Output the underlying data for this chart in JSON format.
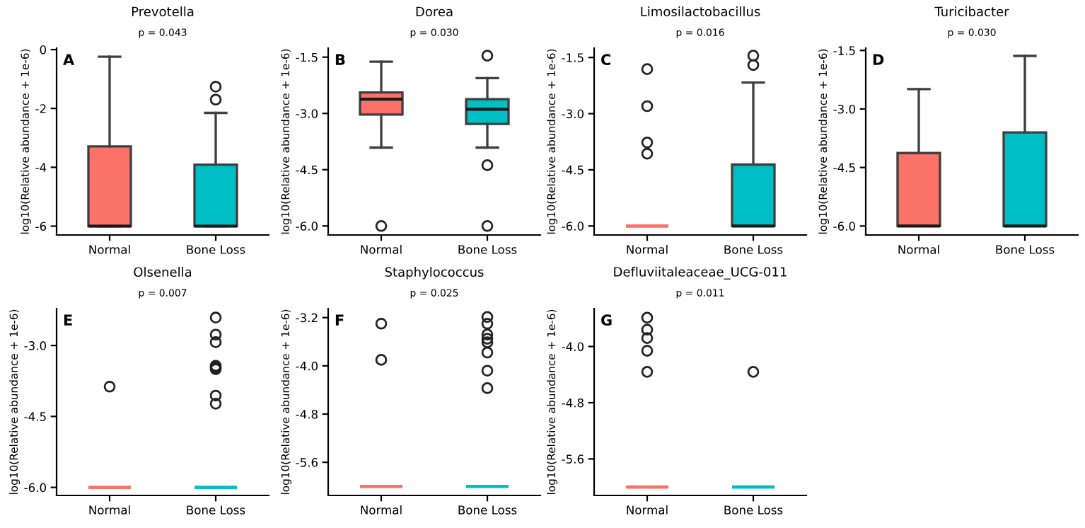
{
  "chart_data": [
    {
      "type": "box",
      "title": "Prevotella",
      "subtitle": "p = 0.043",
      "ylabel": "log10(Relative abundance + 1e-6)",
      "annotations": [
        "A"
      ],
      "categories": [
        "Normal",
        "Bone Loss"
      ],
      "colors": [
        "#fa7268",
        "#00bfc4"
      ],
      "ylim": [
        -6.3,
        0.05
      ],
      "yticks": [
        0,
        -2,
        -4,
        -6
      ],
      "boxes": [
        {
          "low": -6,
          "q1": -6,
          "median": -6,
          "q3": -3.29,
          "high": -0.24
        },
        {
          "low": -6,
          "q1": -6,
          "median": -6,
          "q3": -3.91,
          "high": -2.15,
          "outliers": [
            -1.26,
            -1.7
          ]
        }
      ]
    },
    {
      "type": "box",
      "title": "Dorea",
      "subtitle": "p = 0.030",
      "ylabel": "log10(Relative abundance + 1e-6)",
      "annotations": [
        "B"
      ],
      "categories": [
        "Normal",
        "Bone Loss"
      ],
      "colors": [
        "#fa7268",
        "#00bfc4"
      ],
      "ylim": [
        -6.24,
        -1.26
      ],
      "yticks": [
        -1.5,
        {
          "value": -3,
          "label": "-3.0"
        },
        -4.5,
        {
          "value": -6,
          "label": "-6.0"
        }
      ],
      "boxes": [
        {
          "low": -3.91,
          "q1": -3.03,
          "median": -2.62,
          "q3": -2.44,
          "high": -1.62,
          "outliers": [
            -6.0
          ]
        },
        {
          "low": -3.91,
          "q1": -3.28,
          "median": -2.89,
          "q3": -2.62,
          "high": -2.06,
          "outliers": [
            -1.46,
            -4.38,
            -6.0
          ]
        }
      ]
    },
    {
      "type": "box",
      "title": "Limosilactobacillus",
      "subtitle": "p = 0.016",
      "ylabel": "log10(Relative abundance + 1e-6)",
      "annotations": [
        "C"
      ],
      "categories": [
        "Normal",
        "Bone Loss"
      ],
      "colors": [
        "#fa7268",
        "#00bfc4"
      ],
      "ylim": [
        -6.24,
        -1.25
      ],
      "yticks": [
        -1.5,
        {
          "value": -3,
          "label": "-3.0"
        },
        -4.5,
        {
          "value": -6,
          "label": "-6.0"
        }
      ],
      "boxes": [
        {
          "low": -6,
          "q1": -6,
          "median": -6,
          "q3": -6,
          "high": -6,
          "outliers": [
            -1.81,
            -2.8,
            -3.77,
            -4.07
          ]
        },
        {
          "low": -6,
          "q1": -6,
          "median": -6,
          "q3": -4.36,
          "high": -2.17,
          "outliers": [
            -1.45,
            -1.7
          ]
        }
      ]
    },
    {
      "type": "box",
      "title": "Turicibacter",
      "subtitle": "p = 0.030",
      "ylabel": "log10(Relative abundance + 1e-6)",
      "annotations": [
        "D"
      ],
      "categories": [
        "Normal",
        "Bone Loss"
      ],
      "colors": [
        "#fa7268",
        "#00bfc4"
      ],
      "ylim": [
        -6.23,
        -1.44
      ],
      "yticks": [
        -1.5,
        {
          "value": -3,
          "label": "-3.0"
        },
        -4.5,
        {
          "value": -6,
          "label": "-6.0"
        }
      ],
      "boxes": [
        {
          "low": -6,
          "q1": -6,
          "median": -6,
          "q3": -4.13,
          "high": -2.49
        },
        {
          "low": -6,
          "q1": -6,
          "median": -6,
          "q3": -3.6,
          "high": -1.64
        }
      ]
    },
    {
      "type": "box",
      "title": "Olsenella",
      "subtitle": "p = 0.007",
      "ylabel": "log10(Relative abundance + 1e-6)",
      "annotations": [
        "E"
      ],
      "categories": [
        "Normal",
        "Bone Loss"
      ],
      "colors": [
        "#fa7268",
        "#00bfc4"
      ],
      "ylim": [
        -6.17,
        -2.22
      ],
      "yticks": [
        {
          "value": -3,
          "label": "-3.0"
        },
        -4.5,
        {
          "value": -6,
          "label": "-6.0"
        }
      ],
      "boxes": [
        {
          "low": -6,
          "q1": -6,
          "median": -6,
          "q3": -6,
          "high": -6,
          "outliers": [
            -3.87
          ]
        },
        {
          "low": -6,
          "q1": -6,
          "median": -6,
          "q3": -6,
          "high": -6,
          "outliers": [
            -2.41,
            -2.77,
            -2.93,
            -3.43,
            -3.46,
            -3.48,
            -3.5,
            -4.06,
            -4.23
          ]
        }
      ]
    },
    {
      "type": "box",
      "title": "Staphylococcus",
      "subtitle": "p = 0.025",
      "ylabel": "log10(Relative abundance + 1e-6)",
      "annotations": [
        "F"
      ],
      "categories": [
        "Normal",
        "Bone Loss"
      ],
      "colors": [
        "#fa7268",
        "#00bfc4"
      ],
      "ylim": [
        -6.15,
        -3.05
      ],
      "yticks": [
        -3.2,
        {
          "value": -4,
          "label": "-4.0"
        },
        -4.8,
        -5.6
      ],
      "boxes": [
        {
          "low": -6,
          "q1": -6,
          "median": -6,
          "q3": -6,
          "high": -6,
          "outliers": [
            -3.3,
            -3.9
          ]
        },
        {
          "low": -6,
          "q1": -6,
          "median": -6,
          "q3": -6,
          "high": -6,
          "outliers": [
            -3.19,
            -3.3,
            -3.48,
            -3.55,
            -3.61,
            -3.78,
            -4.08,
            -4.37
          ]
        }
      ]
    },
    {
      "type": "box",
      "title": "Defluviitaleaceae_UCG-011",
      "subtitle": "p = 0.011",
      "ylabel": "log10(Relative abundance + 1e-6)",
      "annotations": [
        "G"
      ],
      "categories": [
        "Normal",
        "Bone Loss"
      ],
      "colors": [
        "#fa7268",
        "#00bfc4"
      ],
      "ylim": [
        -6.12,
        -3.46
      ],
      "yticks": [
        {
          "value": -4,
          "label": "-4.0"
        },
        -4.8,
        -5.6
      ],
      "boxes": [
        {
          "low": -6,
          "q1": -6,
          "median": -6,
          "q3": -6,
          "high": -6,
          "outliers": [
            -3.59,
            -3.76,
            -3.88,
            -4.06,
            -4.36
          ]
        },
        {
          "low": -6,
          "q1": -6,
          "median": -6,
          "q3": -6,
          "high": -6,
          "outliers": [
            -4.36
          ]
        }
      ]
    }
  ]
}
